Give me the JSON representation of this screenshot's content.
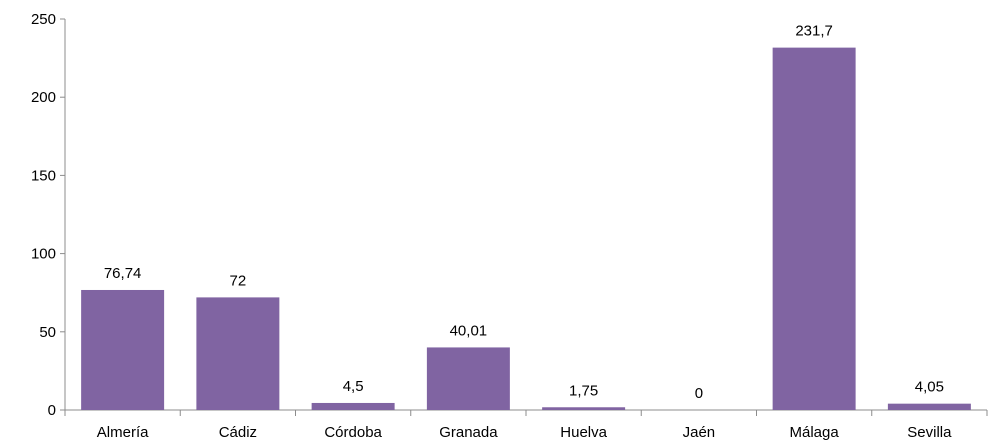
{
  "chart_data": {
    "type": "bar",
    "categories": [
      "Almería",
      "Cádiz",
      "Córdoba",
      "Granada",
      "Huelva",
      "Jaén",
      "Málaga",
      "Sevilla"
    ],
    "values": [
      76.74,
      72,
      4.5,
      40.01,
      1.75,
      0,
      231.7,
      4.05
    ],
    "data_labels": [
      "76,74",
      "72",
      "4,5",
      "40,01",
      "1,75",
      "0",
      "231,7",
      "4,05"
    ],
    "title": "",
    "xlabel": "",
    "ylabel": "",
    "ylim": [
      0,
      250
    ],
    "yticks": [
      0,
      50,
      100,
      150,
      200,
      250
    ],
    "ytick_labels": [
      "0",
      "50",
      "100",
      "150",
      "200",
      "250"
    ],
    "grid": false,
    "legend": "none",
    "bar_color": "#8064a2"
  }
}
